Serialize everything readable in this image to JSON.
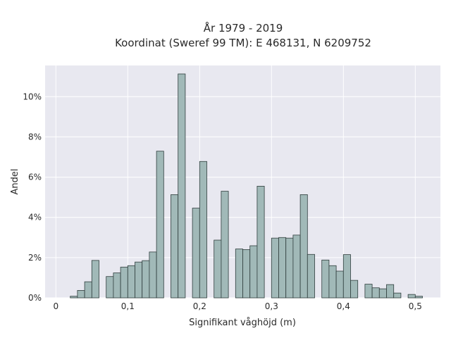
{
  "chart_data": {
    "type": "bar",
    "title_line1": "År 1979 - 2019",
    "title_line2": "Koordinat (Sweref 99 TM): E 468131, N 6209752",
    "xlabel": "Signifikant våghöjd (m)",
    "ylabel": "Andel",
    "xlim": [
      -0.015,
      0.535
    ],
    "ylim": [
      0,
      0.1155
    ],
    "x_ticks": [
      0,
      0.1,
      0.2,
      0.3,
      0.4,
      0.5
    ],
    "x_tick_labels": [
      "0",
      "0,1",
      "0,2",
      "0,3",
      "0,4",
      "0,5"
    ],
    "y_ticks": [
      0,
      0.02,
      0.04,
      0.06,
      0.08,
      0.1
    ],
    "y_tick_labels": [
      "0%",
      "2%",
      "4%",
      "6%",
      "8%",
      "10%"
    ],
    "grid": true,
    "bin_width": 0.01,
    "bins": [
      {
        "x": 0.02,
        "value": 0.0008
      },
      {
        "x": 0.03,
        "value": 0.0037
      },
      {
        "x": 0.04,
        "value": 0.008
      },
      {
        "x": 0.05,
        "value": 0.0186
      },
      {
        "x": 0.07,
        "value": 0.0106
      },
      {
        "x": 0.08,
        "value": 0.0124
      },
      {
        "x": 0.09,
        "value": 0.0153
      },
      {
        "x": 0.1,
        "value": 0.016
      },
      {
        "x": 0.11,
        "value": 0.0178
      },
      {
        "x": 0.12,
        "value": 0.0185
      },
      {
        "x": 0.13,
        "value": 0.0228
      },
      {
        "x": 0.14,
        "value": 0.0729
      },
      {
        "x": 0.16,
        "value": 0.0513
      },
      {
        "x": 0.17,
        "value": 0.1113
      },
      {
        "x": 0.19,
        "value": 0.0446
      },
      {
        "x": 0.2,
        "value": 0.0678
      },
      {
        "x": 0.22,
        "value": 0.0287
      },
      {
        "x": 0.23,
        "value": 0.053
      },
      {
        "x": 0.25,
        "value": 0.0243
      },
      {
        "x": 0.26,
        "value": 0.024
      },
      {
        "x": 0.27,
        "value": 0.0259
      },
      {
        "x": 0.28,
        "value": 0.0555
      },
      {
        "x": 0.3,
        "value": 0.0297
      },
      {
        "x": 0.31,
        "value": 0.03
      },
      {
        "x": 0.32,
        "value": 0.0297
      },
      {
        "x": 0.33,
        "value": 0.0312
      },
      {
        "x": 0.34,
        "value": 0.0513
      },
      {
        "x": 0.35,
        "value": 0.0216
      },
      {
        "x": 0.37,
        "value": 0.0188
      },
      {
        "x": 0.38,
        "value": 0.016
      },
      {
        "x": 0.39,
        "value": 0.0133
      },
      {
        "x": 0.4,
        "value": 0.0215
      },
      {
        "x": 0.41,
        "value": 0.0087
      },
      {
        "x": 0.43,
        "value": 0.0068
      },
      {
        "x": 0.44,
        "value": 0.005
      },
      {
        "x": 0.45,
        "value": 0.0045
      },
      {
        "x": 0.46,
        "value": 0.0066
      },
      {
        "x": 0.47,
        "value": 0.0024
      },
      {
        "x": 0.49,
        "value": 0.0017
      },
      {
        "x": 0.5,
        "value": 0.0008
      }
    ],
    "colors": {
      "bar_fill": "#a1b9b8",
      "bar_stroke": "#2f3d3c",
      "plot_background": "#e8e8f0",
      "grid": "#ffffff"
    }
  }
}
